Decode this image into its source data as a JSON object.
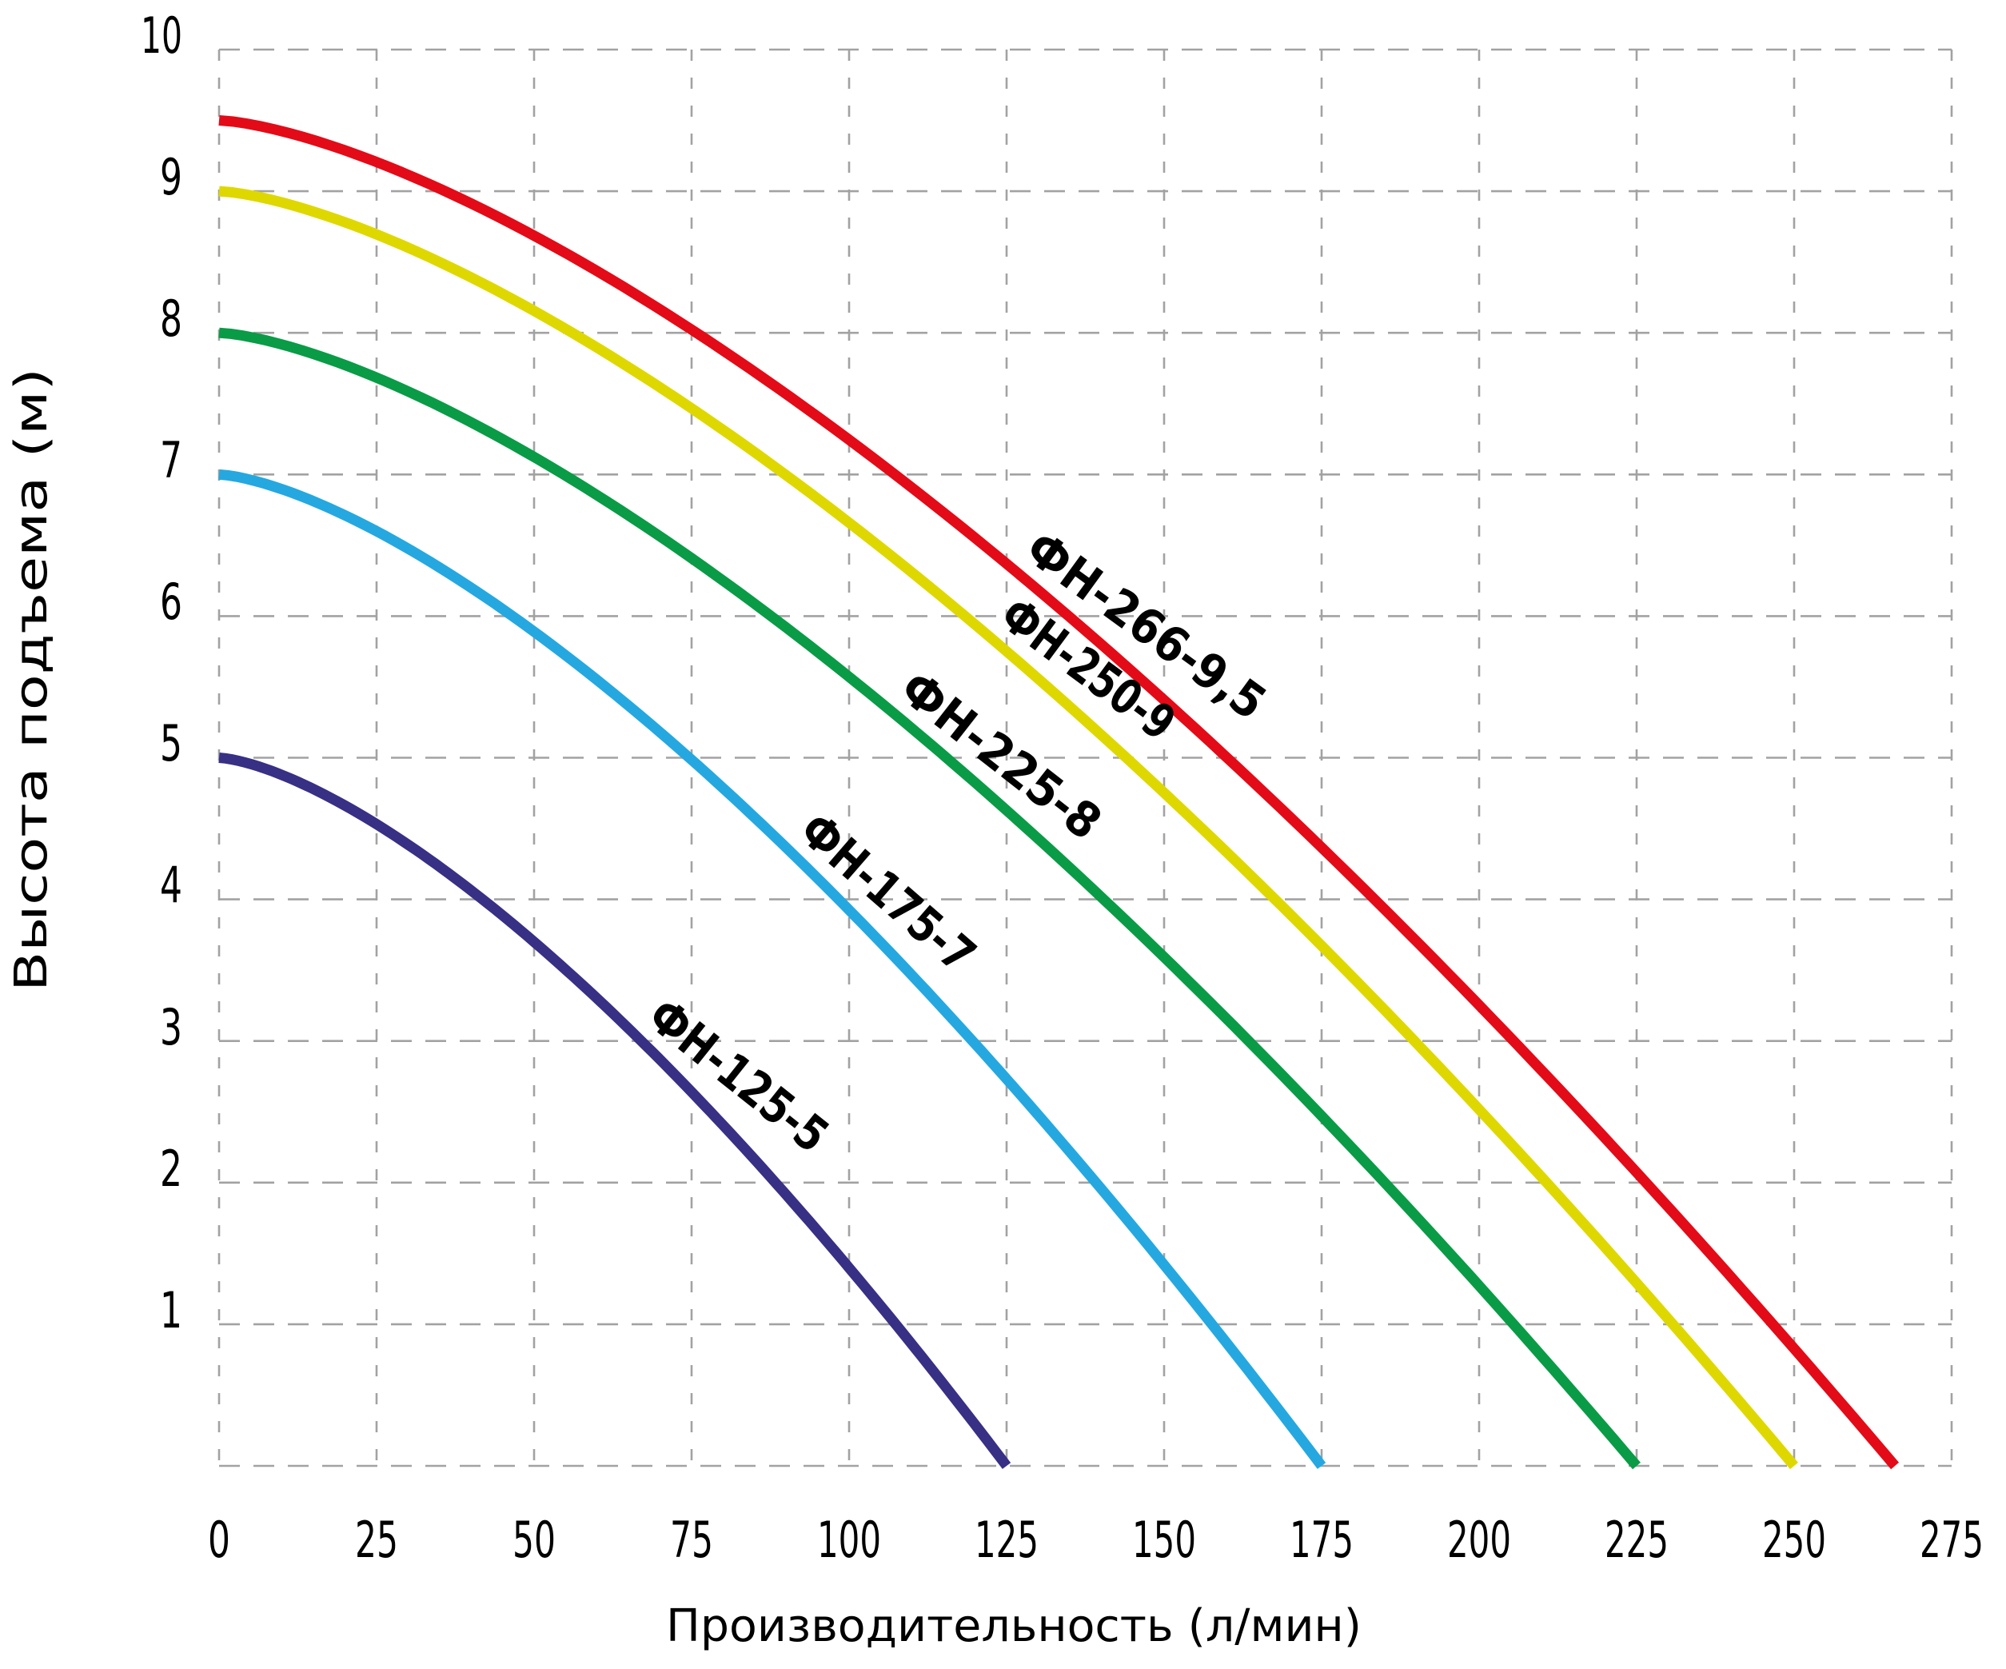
{
  "axes": {
    "x": {
      "title": "Производительность (л/мин)",
      "tick_labels": [
        "0",
        "25",
        "50",
        "75",
        "100",
        "125",
        "150",
        "175",
        "200",
        "225",
        "250",
        "275"
      ],
      "min": 0,
      "max": 275,
      "step": 25
    },
    "y": {
      "title": "Высота подъема (м)",
      "tick_labels": [
        "10",
        "9",
        "8",
        "7",
        "6",
        "5",
        "4",
        "3",
        "2",
        "1"
      ],
      "min": 0,
      "max": 10,
      "step": 1
    }
  },
  "colors": {
    "background": "#ffffff",
    "grid": "#a2a2a2",
    "text": "#000000",
    "red": "#e30b17",
    "yellow": "#ded800",
    "green": "#0a9b46",
    "light_blue": "#25a8e0",
    "navy": "#373084"
  },
  "chart_data": {
    "type": "line",
    "title": "",
    "xlabel": "Производительность (л/мин)",
    "ylabel": "Высота подъема (м)",
    "xlim": [
      0,
      275
    ],
    "ylim": [
      0,
      10
    ],
    "grid": true,
    "grid_style": "dashed",
    "legend_position": "labels-on-curves",
    "series": [
      {
        "name": "ФН-266-9,5",
        "color": "#e30b17",
        "max_head_m": 9.5,
        "max_flow_lmin": 266,
        "curve_exponent": 1.47,
        "x": [
          0,
          25,
          50,
          75,
          100,
          125,
          150,
          175,
          200,
          225,
          250,
          266
        ],
        "y": [
          9.5,
          9.2,
          8.7,
          8.05,
          7.25,
          6.4,
          5.45,
          4.4,
          3.3,
          2.15,
          0.9,
          0
        ]
      },
      {
        "name": "ФН-250-9",
        "color": "#ded800",
        "max_head_m": 9,
        "max_flow_lmin": 250,
        "curve_exponent": 1.47,
        "x": [
          0,
          25,
          50,
          75,
          100,
          125,
          150,
          175,
          200,
          225,
          250
        ],
        "y": [
          9,
          8.7,
          8.15,
          7.45,
          6.65,
          5.75,
          4.7,
          3.65,
          2.5,
          1.3,
          0
        ]
      },
      {
        "name": "ФН-225-8",
        "color": "#0a9b46",
        "max_head_m": 8,
        "max_flow_lmin": 225,
        "curve_exponent": 1.47,
        "x": [
          0,
          25,
          50,
          75,
          100,
          125,
          150,
          175,
          200,
          225
        ],
        "y": [
          8,
          7.7,
          7.1,
          6.4,
          5.55,
          4.6,
          3.6,
          2.45,
          1.25,
          0
        ]
      },
      {
        "name": "ФН-175-7",
        "color": "#25a8e0",
        "max_head_m": 7,
        "max_flow_lmin": 175,
        "curve_exponent": 1.47,
        "x": [
          0,
          25,
          50,
          75,
          100,
          125,
          150,
          175
        ],
        "y": [
          7,
          6.6,
          5.9,
          5,
          3.9,
          2.75,
          1.4,
          0
        ]
      },
      {
        "name": "ФН-125-5",
        "color": "#373084",
        "max_head_m": 5,
        "max_flow_lmin": 125,
        "curve_exponent": 1.47,
        "x": [
          0,
          25,
          50,
          75,
          100,
          125
        ],
        "y": [
          5,
          4.55,
          3.7,
          2.65,
          1.4,
          0
        ]
      }
    ]
  }
}
